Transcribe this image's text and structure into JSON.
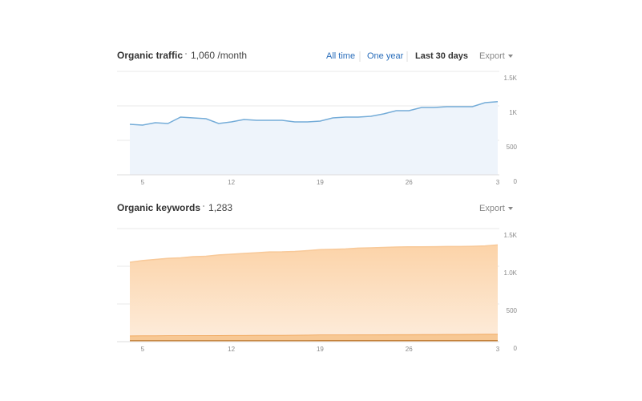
{
  "tabs": [
    "All time",
    "One year",
    "Last 30 days"
  ],
  "chart_data": [
    {
      "type": "area_line",
      "title": "Organic traffic",
      "summary": "1,060 /month",
      "export": "Export",
      "categories": [
        null,
        "5",
        null,
        null,
        null,
        null,
        null,
        null,
        "12",
        null,
        null,
        null,
        null,
        null,
        null,
        "19",
        null,
        null,
        null,
        null,
        null,
        null,
        "26",
        null,
        null,
        null,
        null,
        null,
        null,
        "3"
      ],
      "values": [
        733,
        721,
        756,
        744,
        837,
        826,
        814,
        744,
        767,
        802,
        791,
        791,
        791,
        767,
        767,
        779,
        826,
        837,
        837,
        849,
        884,
        930,
        930,
        977,
        977,
        988,
        988,
        988,
        1047,
        1060
      ],
      "color": "#74acd8",
      "fill": "#eef4fb",
      "ylim": [
        0,
        1500
      ],
      "yticks": [
        0,
        500,
        {
          "value": 1000,
          "label": "1K"
        },
        {
          "value": 1500,
          "label": "1.5K"
        }
      ],
      "grid": true
    },
    {
      "type": "stacked_area",
      "title": "Organic keywords",
      "summary": "1,283",
      "export": "Export",
      "categories": [
        null,
        "5",
        null,
        null,
        null,
        null,
        null,
        null,
        "12",
        null,
        null,
        null,
        null,
        null,
        null,
        "19",
        null,
        null,
        null,
        null,
        null,
        null,
        "26",
        null,
        null,
        null,
        null,
        null,
        null,
        "3"
      ],
      "series": [
        {
          "color": "#b8742c",
          "fill": "#d98b3a",
          "values": [
            18,
            18,
            18,
            18,
            18,
            18,
            18,
            18,
            18,
            18,
            18,
            18,
            18,
            18,
            18,
            20,
            20,
            20,
            20,
            20,
            20,
            20,
            20,
            20,
            20,
            20,
            20,
            20,
            20,
            20
          ]
        },
        {
          "color": "#ee9a45",
          "fill": "#f7c894",
          "values": [
            62,
            63,
            63,
            64,
            65,
            66,
            66,
            67,
            68,
            68,
            69,
            70,
            70,
            71,
            72,
            73,
            73,
            74,
            75,
            75,
            76,
            77,
            77,
            78,
            79,
            80,
            80,
            81,
            82,
            82
          ]
        },
        {
          "color": "#f8c999",
          "fill": "#fde3c8",
          "values": [
            973,
            994,
            1009,
            1023,
            1029,
            1044,
            1049,
            1065,
            1074,
            1084,
            1093,
            1102,
            1104,
            1108,
            1117,
            1127,
            1132,
            1136,
            1145,
            1150,
            1154,
            1158,
            1161,
            1160,
            1161,
            1162,
            1162,
            1164,
            1168,
            1181
          ]
        }
      ],
      "ylim": [
        0,
        1500
      ],
      "yticks": [
        0,
        500,
        {
          "value": 1000,
          "label": "1.0K"
        },
        {
          "value": 1500,
          "label": "1.5K"
        }
      ],
      "grid": true
    }
  ]
}
